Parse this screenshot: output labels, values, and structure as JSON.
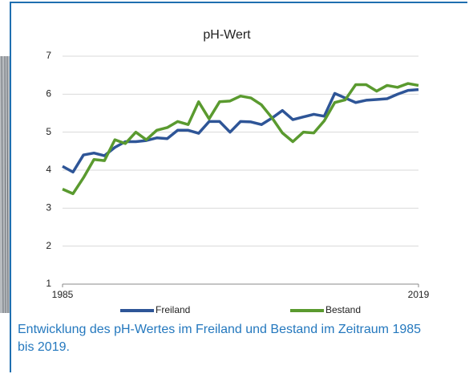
{
  "chart_data": {
    "type": "line",
    "title": "pH-Wert",
    "x": [
      1985,
      1986,
      1987,
      1988,
      1989,
      1990,
      1991,
      1992,
      1993,
      1994,
      1995,
      1996,
      1997,
      1998,
      1999,
      2000,
      2001,
      2002,
      2003,
      2004,
      2005,
      2006,
      2007,
      2008,
      2009,
      2010,
      2011,
      2012,
      2013,
      2014,
      2015,
      2016,
      2017,
      2018,
      2019
    ],
    "series": [
      {
        "name": "Freiland",
        "color": "#2e5597",
        "values": [
          4.1,
          3.95,
          4.4,
          4.45,
          4.38,
          4.6,
          4.75,
          4.75,
          4.78,
          4.85,
          4.83,
          5.05,
          5.05,
          4.97,
          5.28,
          5.28,
          5.0,
          5.28,
          5.27,
          5.2,
          5.37,
          5.57,
          5.33,
          5.4,
          5.47,
          5.42,
          6.02,
          5.9,
          5.78,
          5.84,
          5.86,
          5.88,
          6.0,
          6.1,
          6.12
        ]
      },
      {
        "name": "Bestand",
        "color": "#5a9a2f",
        "values": [
          3.5,
          3.38,
          3.8,
          4.28,
          4.25,
          4.8,
          4.7,
          5.0,
          4.8,
          5.05,
          5.12,
          5.28,
          5.2,
          5.8,
          5.35,
          5.8,
          5.82,
          5.95,
          5.9,
          5.72,
          5.38,
          4.98,
          4.75,
          5.0,
          4.98,
          5.3,
          5.78,
          5.85,
          6.25,
          6.25,
          6.08,
          6.23,
          6.18,
          6.28,
          6.23
        ]
      }
    ],
    "xlim": [
      1985,
      2019
    ],
    "xticks": [
      1985,
      2019
    ],
    "ylim": [
      1,
      7
    ],
    "yticks": [
      1,
      2,
      3,
      4,
      5,
      6,
      7
    ],
    "grid": true,
    "legend": "bottom"
  },
  "caption": "Entwicklung des pH-Wertes im Freiland und Bestand im Zeitraum 1985 bis 2019."
}
